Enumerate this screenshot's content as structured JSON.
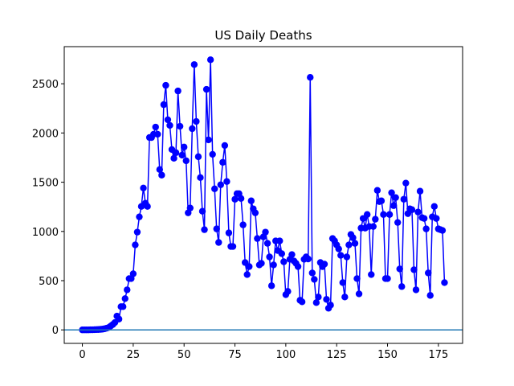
{
  "chart_data": {
    "type": "line",
    "title": "US Daily Deaths",
    "x": [
      0,
      1,
      2,
      3,
      4,
      5,
      6,
      7,
      8,
      9,
      10,
      11,
      12,
      13,
      14,
      15,
      16,
      17,
      18,
      19,
      20,
      21,
      22,
      23,
      24,
      25,
      26,
      27,
      28,
      29,
      30,
      31,
      32,
      33,
      34,
      35,
      36,
      37,
      38,
      39,
      40,
      41,
      42,
      43,
      44,
      45,
      46,
      47,
      48,
      49,
      50,
      51,
      52,
      53,
      54,
      55,
      56,
      57,
      58,
      59,
      60,
      61,
      62,
      63,
      64,
      65,
      66,
      67,
      68,
      69,
      70,
      71,
      72,
      73,
      74,
      75,
      76,
      77,
      78,
      79,
      80,
      81,
      82,
      83,
      84,
      85,
      86,
      87,
      88,
      89,
      90,
      91,
      92,
      93,
      94,
      95,
      96,
      97,
      98,
      99,
      100,
      101,
      102,
      103,
      104,
      105,
      106,
      107,
      108,
      109,
      110,
      111,
      112,
      113,
      114,
      115,
      116,
      117,
      118,
      119,
      120,
      121,
      122,
      123,
      124,
      125,
      126,
      127,
      128,
      129,
      130,
      131,
      132,
      133,
      134,
      135,
      136,
      137,
      138,
      139,
      140,
      141,
      142,
      143,
      144,
      145,
      146,
      147,
      148,
      149,
      150,
      151,
      152,
      153,
      154,
      155,
      156,
      157,
      158,
      159,
      160,
      161,
      162,
      163,
      164,
      165,
      166,
      167,
      168,
      169,
      170,
      171,
      172,
      173,
      174,
      175,
      176,
      177,
      178
    ],
    "series": [
      {
        "color": "#0000ff",
        "values": [
          0,
          0,
          0,
          0,
          1,
          1,
          2,
          3,
          4,
          6,
          8,
          12,
          18,
          25,
          40,
          55,
          75,
          140,
          110,
          236,
          236,
          318,
          407,
          521,
          521,
          570,
          863,
          993,
          1148,
          1254,
          1441,
          1287,
          1254,
          1954,
          1954,
          1987,
          2060,
          1987,
          1629,
          1572,
          2288,
          2484,
          2134,
          2077,
          1832,
          1743,
          1800,
          2427,
          2068,
          1775,
          1857,
          1718,
          1189,
          1238,
          2044,
          2695,
          2117,
          1759,
          1547,
          1205,
          1018,
          2443,
          1930,
          2744,
          1783,
          1433,
          1026,
          888,
          1474,
          1702,
          1873,
          1507,
          985,
          847,
          847,
          1327,
          1384,
          1384,
          1335,
          1067,
          684,
          562,
          643,
          1311,
          1230,
          1189,
          928,
          660,
          676,
          945,
          993,
          879,
          741,
          448,
          660,
          904,
          806,
          904,
          774,
          692,
          358,
          391,
          717,
          765,
          700,
          676,
          643,
          301,
          285,
          717,
          741,
          720,
          2565,
          578,
          513,
          277,
          334,
          684,
          643,
          668,
          310,
          220,
          252,
          928,
          904,
          863,
          822,
          757,
          480,
          334,
          741,
          863,
          969,
          936,
          879,
          521,
          366,
          1034,
          1132,
          1034,
          1172,
          1050,
          562,
          1050,
          1124,
          1417,
          1303,
          1311,
          1172,
          521,
          521,
          1172,
          1393,
          1262,
          1344,
          1091,
          619,
          440,
          1327,
          1491,
          1181,
          1230,
          1221,
          611,
          407,
          1197,
          1409,
          1140,
          1132,
          1026,
          578,
          350,
          1148,
          1254,
          1132,
          1026,
          1018,
          1010,
          480
        ]
      }
    ],
    "hline": {
      "y": 0,
      "color": "#1f77b4"
    },
    "xlim": [
      -8.9,
      186.9
    ],
    "xticks": [
      0,
      25,
      50,
      75,
      100,
      125,
      150,
      175
    ],
    "ylim": [
      -137,
      2877
    ],
    "yticks": [
      0,
      500,
      1000,
      1500,
      2000,
      2500
    ]
  }
}
